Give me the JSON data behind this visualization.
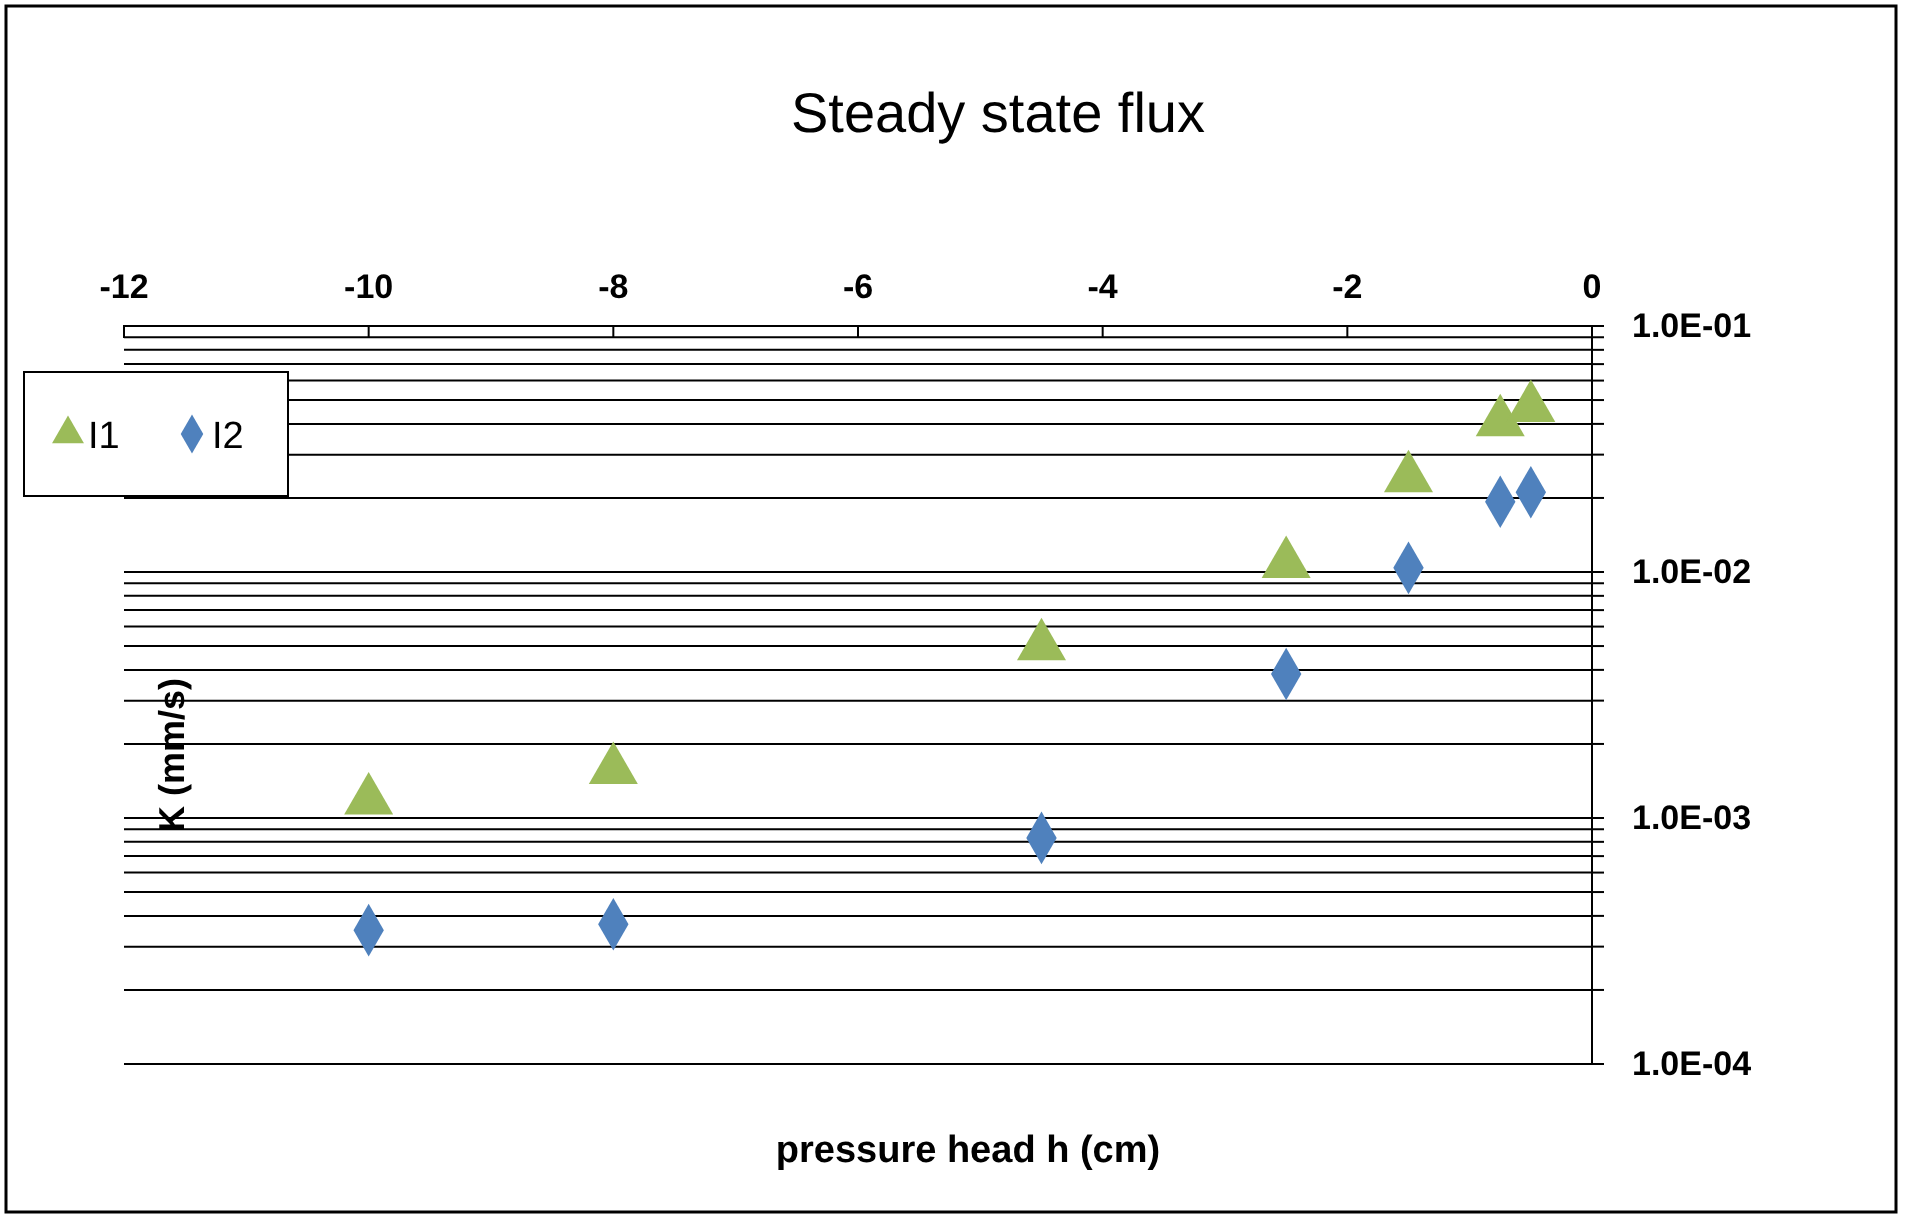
{
  "chart_data": {
    "type": "scatter",
    "title": "Steady state flux",
    "xlabel": "pressure head h (cm)",
    "ylabel": "K (mm/s)",
    "x": [
      -10,
      -8,
      -4.5,
      -2.5,
      -1.5,
      -0.75,
      -0.5
    ],
    "series": [
      {
        "name": "I1",
        "color": "#9bbb59",
        "marker": "triangle",
        "values": [
          0.00118,
          0.00157,
          0.005,
          0.0108,
          0.0241,
          0.0407,
          0.0465
        ]
      },
      {
        "name": "I2",
        "color": "#4f81bd",
        "marker": "diamond",
        "values": [
          0.00035,
          0.00037,
          0.00083,
          0.00385,
          0.0104,
          0.0193,
          0.0211
        ]
      }
    ],
    "xlim": [
      -12,
      0
    ],
    "xticks": [
      -12,
      -10,
      -8,
      -6,
      -4,
      -2,
      0
    ],
    "ylim": [
      0.0001,
      0.1
    ],
    "yticks": [
      {
        "value": 0.0001,
        "label": "1.0E-04"
      },
      {
        "value": 0.0002,
        "label": null
      },
      {
        "value": 0.0003,
        "label": null
      },
      {
        "value": 0.0004,
        "label": null
      },
      {
        "value": 0.0005,
        "label": null
      },
      {
        "value": 0.0006,
        "label": null
      },
      {
        "value": 0.0007,
        "label": null
      },
      {
        "value": 0.0008,
        "label": null
      },
      {
        "value": 0.0009,
        "label": null
      },
      {
        "value": 0.001,
        "label": "1.0E-03"
      },
      {
        "value": 0.002,
        "label": null
      },
      {
        "value": 0.003,
        "label": null
      },
      {
        "value": 0.004,
        "label": null
      },
      {
        "value": 0.005,
        "label": null
      },
      {
        "value": 0.006,
        "label": null
      },
      {
        "value": 0.007,
        "label": null
      },
      {
        "value": 0.008,
        "label": null
      },
      {
        "value": 0.009,
        "label": null
      },
      {
        "value": 0.01,
        "label": "1.0E-02"
      },
      {
        "value": 0.02,
        "label": null
      },
      {
        "value": 0.03,
        "label": null
      },
      {
        "value": 0.04,
        "label": null
      },
      {
        "value": 0.05,
        "label": null
      },
      {
        "value": 0.06,
        "label": null
      },
      {
        "value": 0.07,
        "label": null
      },
      {
        "value": 0.08,
        "label": null
      },
      {
        "value": 0.09,
        "label": null
      },
      {
        "value": 0.1,
        "label": "1.0E-01"
      }
    ],
    "log": true,
    "grid": "y",
    "legend": "top left"
  }
}
